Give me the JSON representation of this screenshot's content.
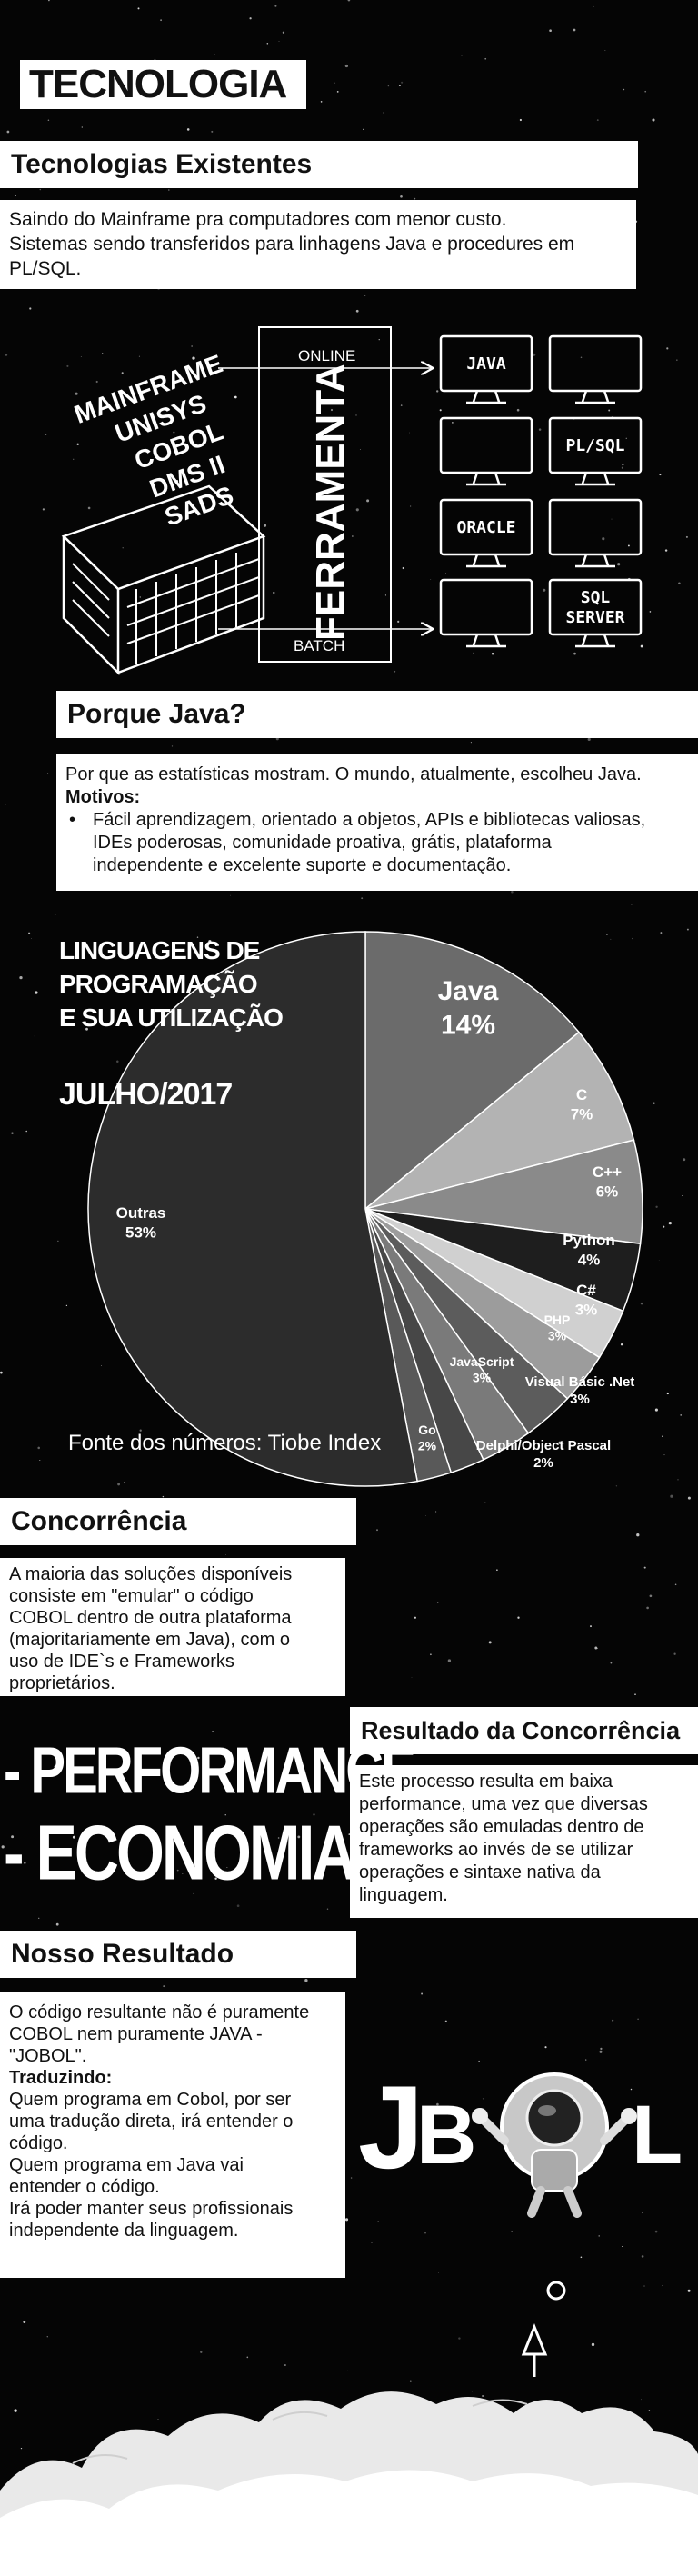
{
  "header": {
    "title": "TECNOLOGIA"
  },
  "existing": {
    "heading": "Tecnologias Existentes",
    "lines": [
      "Saindo do Mainframe pra computadores com menor custo.",
      "Sistemas sendo transferidos para linhagens Java e procedures em",
      "PL/SQL."
    ]
  },
  "diagram": {
    "legacy_lines": [
      "MAINFRAME",
      "UNISYS",
      "COBOL",
      "DMS II",
      "SADS"
    ],
    "tool_label": "FERRAMENTA",
    "online_label": "ONLINE",
    "batch_label": "BATCH",
    "monitors": [
      "JAVA",
      "",
      "",
      "PL/SQL",
      "ORACLE",
      "",
      "",
      "SQL\nSERVER"
    ]
  },
  "why_java": {
    "heading": "Porque Java?",
    "intro": "Por que as estatísticas mostram. O mundo, atualmente, escolheu Java.",
    "motives_label": "Motivos:",
    "bullet_lines": [
      "Fácil aprendizagem, orientado a objetos, APIs e bibliotecas valiosas,",
      "IDEs poderosas, comunidade proativa, grátis, plataforma",
      "independente e excelente suporte e documentação."
    ]
  },
  "chart_data": {
    "type": "pie",
    "title_lines": [
      "LINGUAGENS DE",
      "PROGRAMAÇÃO",
      "E SUA UTILIZAÇÃO"
    ],
    "subtitle": "JULHO/2017",
    "source": "Fonte dos números: Tiobe Index",
    "slices": [
      {
        "label": "Java",
        "value": 14,
        "value_label": "14%",
        "color": "#6b6b6b"
      },
      {
        "label": "C",
        "value": 7,
        "value_label": "7%",
        "color": "#b3b3b3"
      },
      {
        "label": "C++",
        "value": 6,
        "value_label": "6%",
        "color": "#8a8a8a"
      },
      {
        "label": "Python",
        "value": 4,
        "value_label": "4%",
        "color": "#1e1e1e"
      },
      {
        "label": "C#",
        "value": 3,
        "value_label": "3%",
        "color": "#d0d0d0"
      },
      {
        "label": "PHP",
        "value": 3,
        "value_label": "3%",
        "color": "#9c9c9c"
      },
      {
        "label": "Visual Básic .Net",
        "value": 3,
        "value_label": "3%",
        "color": "#5c5c5c"
      },
      {
        "label": "JavaScript",
        "value": 3,
        "value_label": "3%",
        "color": "#7a7a7a"
      },
      {
        "label": "Delphi/Object Pascal",
        "value": 2,
        "value_label": "2%",
        "color": "#474747"
      },
      {
        "label": "Go",
        "value": 2,
        "value_label": "2%",
        "color": "#595959"
      },
      {
        "label": "Outras",
        "value": 53,
        "value_label": "53%",
        "color": "#2c2c2c"
      }
    ]
  },
  "competition": {
    "heading": "Concorrência",
    "lines": [
      "A maioria das soluções disponíveis",
      "consiste em \"emular\" o código",
      "COBOL dentro de outra plataforma",
      "(majoritariamente em Java), com o",
      "uso de IDE`s e Frameworks",
      "proprietários."
    ]
  },
  "impact": {
    "line1": "- PERFORMANCE",
    "line2": "- ECONOMIA"
  },
  "competition_result": {
    "heading": "Resultado da Concorrência",
    "lines": [
      "Este processo resulta em baixa",
      "performance, uma vez que diversas",
      "operações são emuladas dentro de",
      "frameworks ao invés de se utilizar",
      "operações e sintaxe nativa da",
      "linguagem."
    ]
  },
  "our_result": {
    "heading": "Nosso Resultado",
    "lines": [
      "O código resultante não é puramente",
      "COBOL nem puramente JAVA -",
      "\"JOBOL\"."
    ],
    "translating_label": "Traduzindo:",
    "translating_lines": [
      "Quem programa em Cobol, por ser",
      "uma tradução direta, irá entender o",
      "código.",
      "Quem programa em Java vai",
      "entender o código.",
      "Irá poder manter seus profissionais",
      "independente da linguagem."
    ]
  },
  "logo": {
    "letters": [
      "J",
      "B",
      "L"
    ],
    "name": "JOBOL"
  }
}
